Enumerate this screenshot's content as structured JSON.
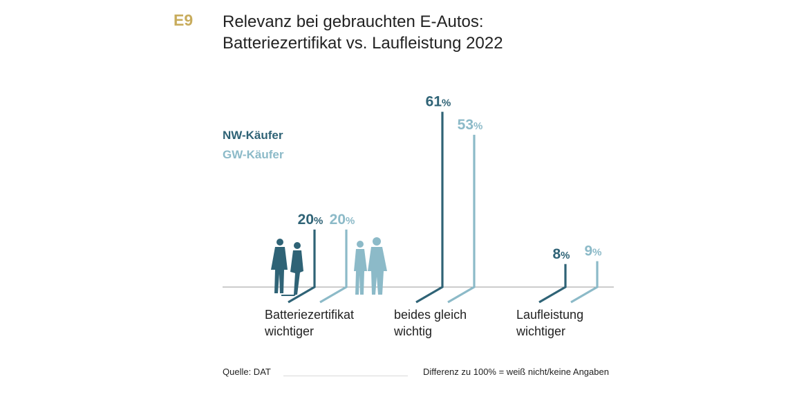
{
  "header": {
    "code": "E9",
    "title_line1": "Relevanz bei gebrauchten E-Autos:",
    "title_line2": "Batteriezertifikat vs. Laufleistung 2022"
  },
  "legend": {
    "nw": "NW-Käufer",
    "gw": "GW-Käufer"
  },
  "colors": {
    "nw": "#2f6376",
    "gw": "#8cbac8",
    "accent": "#c8ac5c",
    "baseline": "#999999"
  },
  "chart_data": {
    "type": "bar",
    "categories": [
      [
        "Batteriezertifikat",
        "wichtiger"
      ],
      [
        "beides gleich",
        "wichtig"
      ],
      [
        "Laufleistung",
        "wichtiger"
      ]
    ],
    "series": [
      {
        "name": "NW-Käufer",
        "values": [
          20,
          61,
          8
        ]
      },
      {
        "name": "GW-Käufer",
        "values": [
          20,
          53,
          9
        ]
      }
    ],
    "unit": "%",
    "ylim": [
      0,
      65
    ],
    "grid": false,
    "legend_position": "top-left"
  },
  "footer": {
    "source": "Quelle: DAT",
    "note": "Differenz zu 100% = weiß nicht/keine Angaben"
  }
}
